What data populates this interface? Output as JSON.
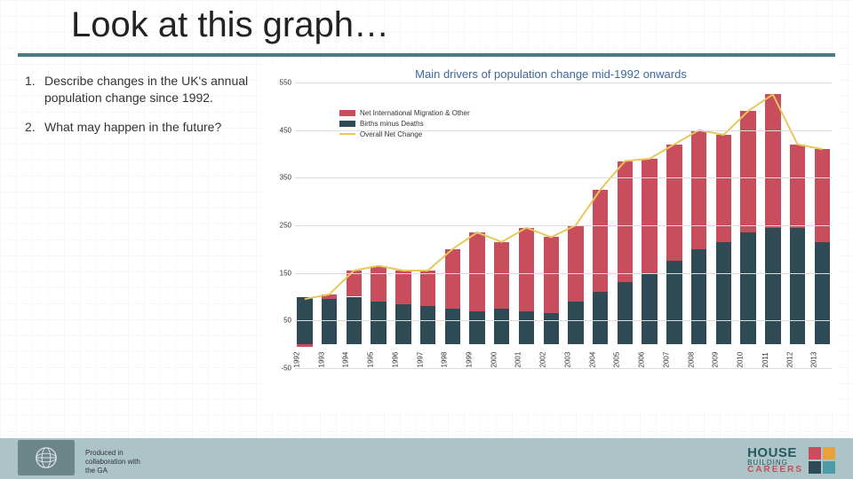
{
  "title": "Look at this graph…",
  "questions": [
    {
      "n": "1.",
      "text": "Describe changes in the UK's annual population change since 1992."
    },
    {
      "n": "2.",
      "text": "What may happen in the future?"
    }
  ],
  "chart": {
    "type": "stacked-bar-with-line",
    "title": "Main drivers of population change mid-1992 onwards",
    "title_color": "#3a6aa0",
    "title_fontsize": 13,
    "background_color": "#ffffff",
    "grid_color": "#dcdcdc",
    "tick_fontsize": 8,
    "tick_color": "#333333",
    "ylim": [
      -50,
      550
    ],
    "yticks": [
      -50,
      50,
      150,
      250,
      350,
      450,
      550
    ],
    "categories": [
      "1992",
      "1993",
      "1994",
      "1995",
      "1996",
      "1997",
      "1998",
      "1999",
      "2000",
      "2001",
      "2002",
      "2003",
      "2004",
      "2005",
      "2006",
      "2007",
      "2008",
      "2009",
      "2010",
      "2011",
      "2012",
      "2013"
    ],
    "bar_gap_pct": 6,
    "bar_inner_width_pct": 80,
    "series": [
      {
        "key": "births_minus_deaths",
        "label": "Births minus Deaths",
        "color": "#2d4a55",
        "values": [
          100,
          95,
          100,
          90,
          85,
          80,
          75,
          70,
          75,
          70,
          65,
          90,
          110,
          130,
          150,
          175,
          200,
          215,
          235,
          245,
          245,
          215
        ]
      },
      {
        "key": "net_migration",
        "label": "Net International Migration & Other",
        "color": "#c84d5d",
        "values": [
          -5,
          10,
          55,
          75,
          70,
          75,
          125,
          165,
          140,
          175,
          160,
          160,
          215,
          255,
          240,
          245,
          250,
          225,
          255,
          280,
          175,
          195
        ]
      }
    ],
    "line_series": {
      "label": "Overall Net Change",
      "color": "#e8c85a",
      "width": 2,
      "values": [
        95,
        105,
        155,
        165,
        155,
        155,
        200,
        235,
        215,
        245,
        225,
        250,
        325,
        385,
        390,
        420,
        450,
        440,
        490,
        525,
        420,
        410
      ]
    },
    "legend": {
      "position": "top-left",
      "items": [
        {
          "type": "swatch",
          "color": "#c84d5d",
          "label": "Net International Migration & Other"
        },
        {
          "type": "swatch",
          "color": "#2d4a55",
          "label": "Births minus Deaths"
        },
        {
          "type": "line",
          "color": "#e8c85a",
          "label": "Overall Net Change"
        }
      ]
    }
  },
  "footer": {
    "bar_color": "#acc4c7",
    "credit_lines": [
      "Produced in",
      "collaboration with",
      "the GA"
    ],
    "hbc": {
      "l1": "HOUSE",
      "l2": "BUILDING",
      "l3": "CAREERS",
      "c1": "#245a60",
      "c3": "#c84d5d"
    }
  }
}
